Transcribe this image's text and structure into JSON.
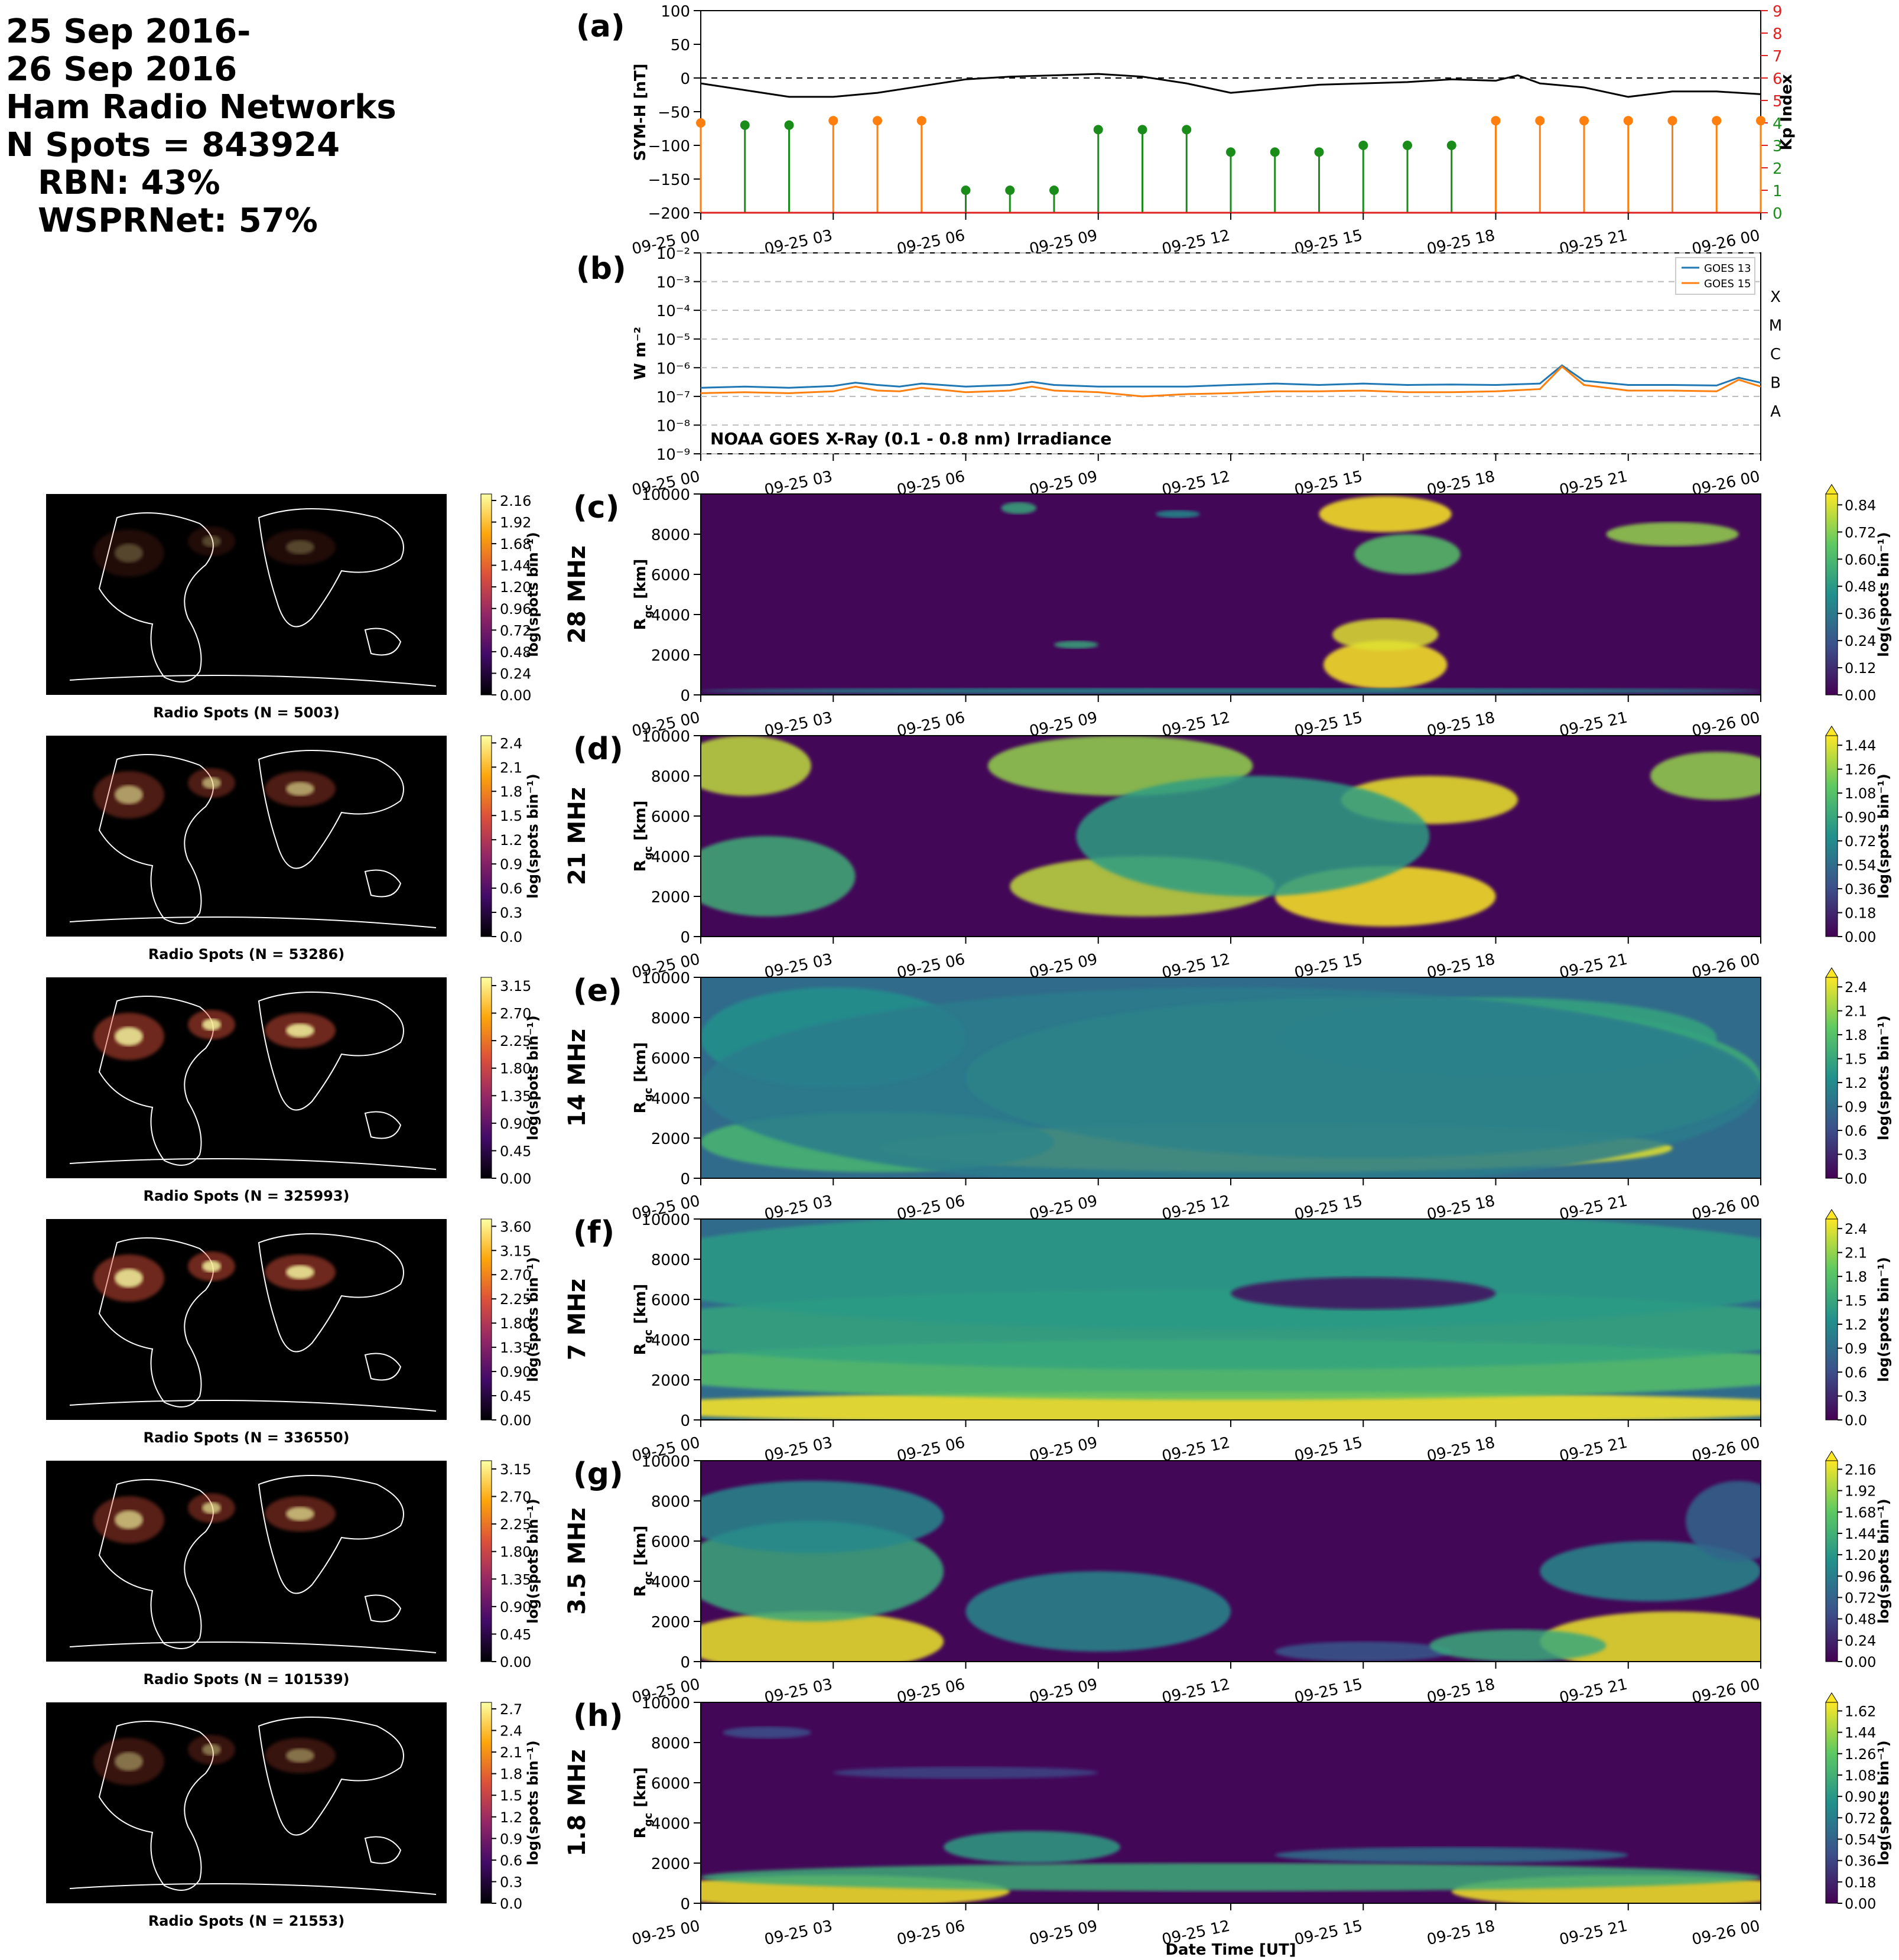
{
  "summary": {
    "line1": "25 Sep 2016-",
    "line2": "26 Sep 2016",
    "line3": "Ham Radio Networks",
    "line4": "N Spots = 843924",
    "line5": "RBN: 43%",
    "line6": "WSPRNet: 57%"
  },
  "time_ticks": [
    "09-25 00",
    "09-25 03",
    "09-25 06",
    "09-25 09",
    "09-25 12",
    "09-25 15",
    "09-25 18",
    "09-25 21",
    "09-26 00"
  ],
  "xlabel": "Date Time [UT]",
  "colors": {
    "symh": "#000000",
    "kp_storm": "#ff7f0e",
    "kp_quiet": "#1a8c1a",
    "goes13": "#1f77b4",
    "goes15": "#ff7f0e",
    "kp_axis": "#e02020"
  },
  "chart_data": [
    {
      "panel": "(a)",
      "type": "line",
      "ylabel": "SYM-H [nT]",
      "ylim": [
        -200,
        100
      ],
      "yticks": [
        -200,
        -150,
        -100,
        -50,
        0,
        50,
        100
      ],
      "reference_line": 0,
      "x_hours": [
        0,
        1,
        2,
        3,
        4,
        5,
        6,
        7,
        8,
        9,
        10,
        11,
        12,
        13,
        14,
        15,
        16,
        17,
        18,
        18.5,
        19,
        20,
        21,
        22,
        23,
        24
      ],
      "symh": [
        -8,
        -18,
        -28,
        -28,
        -22,
        -12,
        -2,
        2,
        4,
        6,
        2,
        -8,
        -22,
        -16,
        -10,
        -8,
        -6,
        -2,
        -4,
        4,
        -8,
        -14,
        -28,
        -20,
        -20,
        -24
      ],
      "secondary_axis": {
        "ylabel": "Kp Index",
        "ylim": [
          0,
          9
        ],
        "yticks": [
          0,
          1,
          2,
          3,
          4,
          5,
          6,
          7,
          8,
          9
        ],
        "x_hours": [
          0,
          1,
          2,
          3,
          4,
          5,
          6,
          7,
          8,
          9,
          10,
          11,
          12,
          13,
          14,
          15,
          16,
          17,
          18,
          19,
          20,
          21,
          22,
          23,
          24
        ],
        "kp": [
          4,
          3.9,
          3.9,
          4.1,
          4.1,
          4.1,
          1,
          1,
          1,
          3.7,
          3.7,
          3.7,
          2.7,
          2.7,
          2.7,
          3,
          3,
          3,
          4.1,
          4.1,
          4.1,
          4.1,
          4.1,
          4.1,
          4.1
        ]
      }
    },
    {
      "panel": "(b)",
      "type": "line",
      "ylabel": "W m⁻²",
      "yscale": "log",
      "ylim": [
        1e-09,
        0.01
      ],
      "ytick_labels": [
        "10⁻⁹",
        "10⁻⁸",
        "10⁻⁷",
        "10⁻⁶",
        "10⁻⁵",
        "10⁻⁴",
        "10⁻³",
        "10⁻²"
      ],
      "flare_classes": [
        "A",
        "B",
        "C",
        "M",
        "X"
      ],
      "annotation": "NOAA GOES X-Ray (0.1 - 0.8 nm) Irradiance",
      "legend_position": "upper-right",
      "x_hours": [
        0,
        1,
        2,
        3,
        3.5,
        4,
        4.5,
        5,
        6,
        7,
        7.5,
        8,
        9,
        10,
        11,
        12,
        13,
        14,
        15,
        16,
        17,
        18,
        19,
        19.5,
        20,
        21,
        22,
        23,
        23.5,
        24
      ],
      "series": [
        {
          "name": "GOES 13",
          "values": [
            2e-07,
            2.2e-07,
            2e-07,
            2.3e-07,
            3e-07,
            2.5e-07,
            2.2e-07,
            2.8e-07,
            2.2e-07,
            2.5e-07,
            3.2e-07,
            2.5e-07,
            2.2e-07,
            2.2e-07,
            2.2e-07,
            2.5e-07,
            2.8e-07,
            2.5e-07,
            2.8e-07,
            2.5e-07,
            2.6e-07,
            2.5e-07,
            2.8e-07,
            1.2e-06,
            3.5e-07,
            2.5e-07,
            2.5e-07,
            2.4e-07,
            4.5e-07,
            3e-07
          ]
        },
        {
          "name": "GOES 15",
          "values": [
            1.3e-07,
            1.4e-07,
            1.3e-07,
            1.5e-07,
            2.2e-07,
            1.6e-07,
            1.5e-07,
            2e-07,
            1.4e-07,
            1.6e-07,
            2.2e-07,
            1.6e-07,
            1.4e-07,
            1e-07,
            1.2e-07,
            1.3e-07,
            1.5e-07,
            1.5e-07,
            1.6e-07,
            1.4e-07,
            1.4e-07,
            1.5e-07,
            1.8e-07,
            1.1e-06,
            2.5e-07,
            1.6e-07,
            1.6e-07,
            1.5e-07,
            3.8e-07,
            2.2e-07
          ]
        }
      ]
    },
    {
      "panel": "(c)",
      "type": "heatmap",
      "band": "28 MHz",
      "ylabel": "Rgc [km]",
      "ylim": [
        0,
        10000
      ],
      "yticks": [
        0,
        2000,
        4000,
        6000,
        8000,
        10000
      ],
      "map_title": "Radio Spots (N = 5003)",
      "map_colorbar_ticks": [
        "0.00",
        "0.24",
        "0.48",
        "0.72",
        "0.96",
        "1.20",
        "1.44",
        "1.68",
        "1.92",
        "2.16"
      ],
      "colorbar_label": "log(spots bin⁻¹)",
      "colorbar_ticks": [
        "0.00",
        "0.12",
        "0.24",
        "0.36",
        "0.48",
        "0.60",
        "0.72",
        "0.84"
      ],
      "blobs": [
        [
          15.5,
          1500,
          1.4,
          1200,
          0.95
        ],
        [
          15.5,
          3000,
          1.2,
          800,
          0.8
        ],
        [
          15.5,
          9000,
          1.5,
          900,
          0.85
        ],
        [
          16,
          7000,
          1.2,
          1000,
          0.6
        ],
        [
          22,
          8000,
          1.5,
          600,
          0.7
        ],
        [
          8.5,
          2500,
          0.5,
          200,
          0.5
        ],
        [
          7.2,
          9300,
          0.4,
          300,
          0.5
        ],
        [
          10.8,
          9000,
          0.5,
          200,
          0.4
        ],
        [
          12,
          200,
          12,
          150,
          0.4
        ]
      ]
    },
    {
      "panel": "(d)",
      "type": "heatmap",
      "band": "21 MHz",
      "ylabel": "Rgc [km]",
      "ylim": [
        0,
        10000
      ],
      "yticks": [
        0,
        2000,
        4000,
        6000,
        8000,
        10000
      ],
      "map_title": "Radio Spots (N = 53286)",
      "map_colorbar_ticks": [
        "0.0",
        "0.3",
        "0.6",
        "0.9",
        "1.2",
        "1.5",
        "1.8",
        "2.1",
        "2.4"
      ],
      "colorbar_label": "log(spots bin⁻¹)",
      "colorbar_ticks": [
        "0.00",
        "0.18",
        "0.36",
        "0.54",
        "0.72",
        "0.90",
        "1.08",
        "1.26",
        "1.44"
      ],
      "blobs": [
        [
          1,
          8500,
          1.5,
          1500,
          1.3
        ],
        [
          1.5,
          3000,
          2,
          2000,
          0.9
        ],
        [
          10,
          2500,
          3,
          1500,
          1.3
        ],
        [
          15.5,
          2000,
          2.5,
          1500,
          1.5
        ],
        [
          16.5,
          6800,
          2,
          1200,
          1.4
        ],
        [
          9.5,
          8500,
          3,
          1500,
          1.2
        ],
        [
          23,
          8000,
          1.5,
          1200,
          1.2
        ],
        [
          12.5,
          5000,
          4,
          3000,
          0.8
        ]
      ]
    },
    {
      "panel": "(e)",
      "type": "heatmap",
      "band": "14 MHz",
      "ylabel": "Rgc [km]",
      "ylim": [
        0,
        10000
      ],
      "yticks": [
        0,
        2000,
        4000,
        6000,
        8000,
        10000
      ],
      "map_title": "Radio Spots (N = 325993)",
      "map_colorbar_ticks": [
        "0.00",
        "0.45",
        "0.90",
        "1.35",
        "1.80",
        "2.25",
        "2.70",
        "3.15"
      ],
      "colorbar_label": "log(spots bin⁻¹)",
      "colorbar_ticks": [
        "0.0",
        "0.3",
        "0.6",
        "0.9",
        "1.2",
        "1.5",
        "1.8",
        "2.1",
        "2.4"
      ],
      "blobs": [
        [
          13,
          1500,
          9,
          1200,
          2.3
        ],
        [
          4,
          1800,
          4,
          1500,
          1.6
        ],
        [
          15,
          5000,
          9,
          4000,
          1.5
        ],
        [
          18,
          7000,
          5,
          2000,
          1.4
        ],
        [
          3,
          7000,
          3,
          2500,
          1.2
        ],
        [
          12,
          4500,
          12,
          5000,
          1.0
        ]
      ]
    },
    {
      "panel": "(f)",
      "type": "heatmap",
      "band": "7 MHz",
      "ylabel": "Rgc [km]",
      "ylim": [
        0,
        10000
      ],
      "yticks": [
        0,
        2000,
        4000,
        6000,
        8000,
        10000
      ],
      "map_title": "Radio Spots (N = 336550)",
      "map_colorbar_ticks": [
        "0.00",
        "0.45",
        "0.90",
        "1.35",
        "1.80",
        "2.25",
        "2.70",
        "3.15",
        "3.60"
      ],
      "colorbar_label": "log(spots bin⁻¹)",
      "colorbar_ticks": [
        "0.0",
        "0.3",
        "0.6",
        "0.9",
        "1.2",
        "1.5",
        "1.8",
        "2.1",
        "2.4"
      ],
      "blobs": [
        [
          12,
          600,
          14,
          800,
          2.4
        ],
        [
          12,
          2500,
          14,
          1500,
          1.7
        ],
        [
          12,
          4500,
          14,
          2000,
          1.4
        ],
        [
          12,
          7500,
          14,
          3000,
          1.3
        ],
        [
          15,
          6300,
          3,
          800,
          -0.8
        ]
      ]
    },
    {
      "panel": "(g)",
      "type": "heatmap",
      "band": "3.5 MHz",
      "ylabel": "Rgc [km]",
      "ylim": [
        0,
        10000
      ],
      "yticks": [
        0,
        2000,
        4000,
        6000,
        8000,
        10000
      ],
      "map_title": "Radio Spots (N = 101539)",
      "map_colorbar_ticks": [
        "0.00",
        "0.45",
        "0.90",
        "1.35",
        "1.80",
        "2.25",
        "2.70",
        "3.15"
      ],
      "colorbar_label": "log(spots bin⁻¹)",
      "colorbar_ticks": [
        "0.00",
        "0.24",
        "0.48",
        "0.72",
        "0.96",
        "1.20",
        "1.44",
        "1.68",
        "1.92",
        "2.16"
      ],
      "blobs": [
        [
          2.5,
          1000,
          3,
          1500,
          2.1
        ],
        [
          22,
          1000,
          3,
          1500,
          2.1
        ],
        [
          2.5,
          4500,
          3,
          2500,
          1.3
        ],
        [
          2.5,
          7200,
          3,
          1800,
          1.0
        ],
        [
          9,
          2500,
          3,
          2000,
          1.0
        ],
        [
          21.5,
          4500,
          2.5,
          1500,
          1.0
        ],
        [
          23.5,
          7000,
          1.2,
          2000,
          0.7
        ],
        [
          15,
          500,
          2,
          500,
          0.6
        ],
        [
          18.5,
          800,
          2,
          800,
          1.3
        ]
      ]
    },
    {
      "panel": "(h)",
      "type": "heatmap",
      "band": "1.8 MHz",
      "ylabel": "Rgc [km]",
      "ylim": [
        0,
        10000
      ],
      "yticks": [
        0,
        2000,
        4000,
        6000,
        8000,
        10000
      ],
      "map_title": "Radio Spots (N = 21553)",
      "map_colorbar_ticks": [
        "0.0",
        "0.3",
        "0.6",
        "0.9",
        "1.2",
        "1.5",
        "1.8",
        "2.1",
        "2.4",
        "2.7"
      ],
      "colorbar_label": "log(spots bin⁻¹)",
      "colorbar_ticks": [
        "0.00",
        "0.18",
        "0.36",
        "0.54",
        "0.72",
        "0.90",
        "1.08",
        "1.26",
        "1.44",
        "1.62"
      ],
      "blobs": [
        [
          3,
          600,
          4,
          800,
          1.6
        ],
        [
          21,
          600,
          4,
          800,
          1.6
        ],
        [
          7.5,
          2800,
          2,
          800,
          0.9
        ],
        [
          12,
          1300,
          12,
          700,
          1.0
        ],
        [
          17,
          2400,
          4,
          400,
          0.6
        ],
        [
          1.5,
          8500,
          1,
          300,
          0.4
        ],
        [
          6,
          6500,
          3,
          300,
          0.35
        ]
      ]
    }
  ]
}
